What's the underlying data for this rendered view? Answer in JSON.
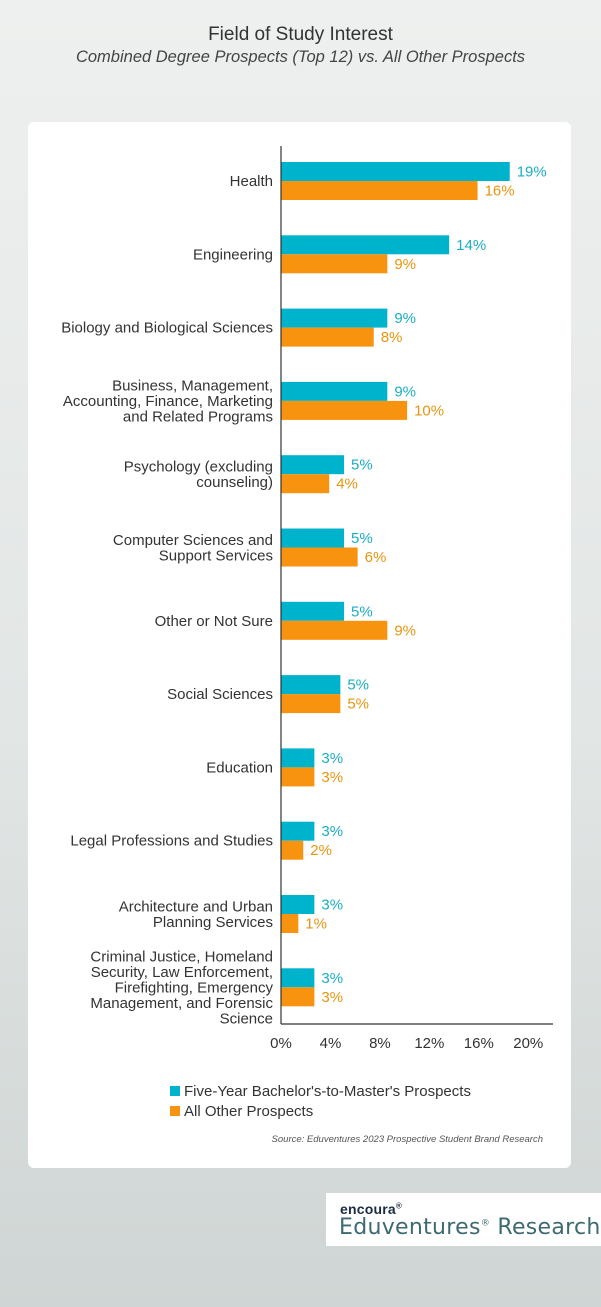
{
  "header": {
    "title": "Field of Study Interest",
    "subtitle": "Combined Degree Prospects (Top 12) vs. All Other Prospects"
  },
  "colors": {
    "series1": "#00b3cc",
    "series2": "#f7930f",
    "series1_text": "#1aaec4",
    "series2_text": "#e8950f",
    "axis": "#333333"
  },
  "chart_data": {
    "type": "bar",
    "orientation": "horizontal",
    "categories": [
      [
        "Health"
      ],
      [
        "Engineering"
      ],
      [
        "Biology and Biological Sciences"
      ],
      [
        "Business, Management,",
        "Accounting, Finance, Marketing",
        "and Related Programs"
      ],
      [
        "Psychology (excluding",
        "counseling)"
      ],
      [
        "Computer Sciences and",
        "Support Services"
      ],
      [
        "Other or Not Sure"
      ],
      [
        "Social Sciences"
      ],
      [
        "Education"
      ],
      [
        "Legal Professions and Studies"
      ],
      [
        "Architecture and Urban",
        "Planning Services"
      ],
      [
        "Criminal Justice, Homeland",
        "Security, Law Enforcement,",
        "Firefighting, Emergency",
        "Management, and Forensic",
        "Science"
      ]
    ],
    "series": [
      {
        "name": "Five-Year Bachelor's-to-Master's Prospects",
        "values": [
          18.5,
          13.6,
          8.6,
          8.6,
          5.1,
          5.1,
          5.1,
          4.8,
          2.7,
          2.7,
          2.7,
          2.7
        ],
        "labels": [
          "19%",
          "14%",
          "9%",
          "9%",
          "5%",
          "5%",
          "5%",
          "5%",
          "3%",
          "3%",
          "3%",
          "3%"
        ]
      },
      {
        "name": "All Other Prospects",
        "values": [
          15.9,
          8.6,
          7.5,
          10.2,
          3.9,
          6.2,
          8.6,
          4.8,
          2.7,
          1.8,
          1.4,
          2.7
        ],
        "labels": [
          "16%",
          "9%",
          "8%",
          "10%",
          "4%",
          "6%",
          "9%",
          "5%",
          "3%",
          "2%",
          "1%",
          "3%"
        ]
      }
    ],
    "xlim": [
      0,
      22
    ],
    "xticks": [
      "0%",
      "4%",
      "8%",
      "12%",
      "16%",
      "20%"
    ],
    "xtick_values": [
      0,
      4,
      8,
      12,
      16,
      20
    ],
    "legend_position": "bottom"
  },
  "legend": {
    "series1": "Five-Year Bachelor's-to-Master's Prospects",
    "series2": "All Other Prospects"
  },
  "source": "Source: Eduventures 2023 Prospective Student Brand Research",
  "brand": {
    "top": "encoura",
    "top_mark": "®",
    "bottom": "Eduventures",
    "bottom_mark": "®",
    "bottom_suffix": " Research"
  }
}
